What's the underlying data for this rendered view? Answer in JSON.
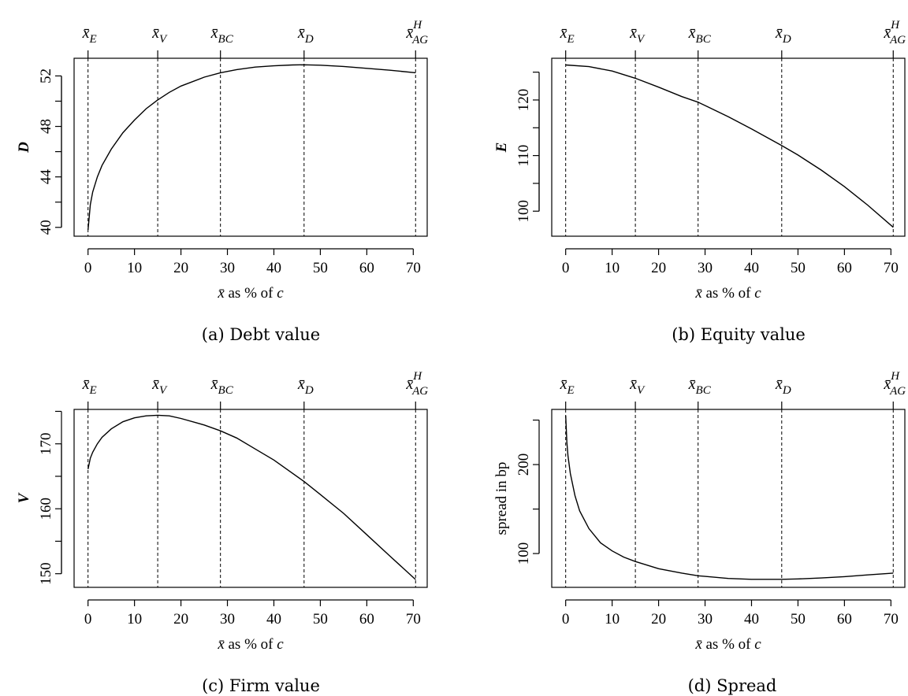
{
  "chart_data": [
    {
      "type": "line",
      "panel": "(a)",
      "caption": "(a) Debt value",
      "xlabel": "x̄ as % of c",
      "ylabel": "D",
      "xlim": [
        -3,
        73
      ],
      "ylim": [
        39.3,
        53.4
      ],
      "xticks": [
        0,
        10,
        20,
        30,
        40,
        50,
        60,
        70
      ],
      "yticks": [
        40,
        44,
        48,
        52
      ],
      "top_axis": [
        {
          "label": "x̄",
          "sub": "E",
          "sup": "",
          "x": 0
        },
        {
          "label": "x̄",
          "sub": "V",
          "sup": "",
          "x": 15
        },
        {
          "label": "x̄",
          "sub": "BC",
          "sup": "",
          "x": 28.5
        },
        {
          "label": "x̄",
          "sub": "D",
          "sup": "",
          "x": 46.5
        },
        {
          "label": "x̄",
          "sub": "AG",
          "sup": "H",
          "x": 70.5
        }
      ],
      "series": [
        {
          "x": [
            0,
            0.5,
            1,
            2,
            3,
            5,
            7.5,
            10,
            12.5,
            15,
            17.5,
            20,
            25,
            28.5,
            32,
            36,
            40,
            44,
            46.5,
            50,
            55,
            60,
            65,
            70.5
          ],
          "y": [
            39.8,
            41.8,
            42.8,
            44.0,
            44.9,
            46.2,
            47.5,
            48.5,
            49.4,
            50.1,
            50.7,
            51.2,
            51.9,
            52.25,
            52.5,
            52.7,
            52.8,
            52.87,
            52.88,
            52.85,
            52.75,
            52.6,
            52.45,
            52.25
          ]
        }
      ]
    },
    {
      "type": "line",
      "panel": "(b)",
      "caption": "(b) Equity value",
      "xlabel": "x̄ as % of c",
      "ylabel": "E",
      "xlim": [
        -3,
        73
      ],
      "ylim": [
        95.5,
        127.5
      ],
      "xticks": [
        0,
        10,
        20,
        30,
        40,
        50,
        60,
        70
      ],
      "yticks": [
        100,
        110,
        120
      ],
      "top_axis": [
        {
          "label": "x̄",
          "sub": "E",
          "sup": "",
          "x": 0
        },
        {
          "label": "x̄",
          "sub": "V",
          "sup": "",
          "x": 15
        },
        {
          "label": "x̄",
          "sub": "BC",
          "sup": "",
          "x": 28.5
        },
        {
          "label": "x̄",
          "sub": "D",
          "sup": "",
          "x": 46.5
        },
        {
          "label": "x̄",
          "sub": "AG",
          "sup": "H",
          "x": 70.5
        }
      ],
      "series": [
        {
          "x": [
            0,
            5,
            10,
            15,
            20,
            25,
            28.5,
            30,
            35,
            40,
            46.5,
            50,
            55,
            60,
            65,
            70.5
          ],
          "y": [
            126.3,
            126.0,
            125.2,
            123.9,
            122.3,
            120.6,
            119.6,
            119.0,
            117.0,
            114.8,
            111.8,
            110.1,
            107.4,
            104.4,
            101.1,
            97.1
          ]
        }
      ]
    },
    {
      "type": "line",
      "panel": "(c)",
      "caption": "(c) Firm value",
      "xlabel": "x̄ as % of c",
      "ylabel": "V",
      "xlim": [
        -3,
        73
      ],
      "ylim": [
        147.9,
        175.3
      ],
      "xticks": [
        0,
        10,
        20,
        30,
        40,
        50,
        60,
        70
      ],
      "yticks": [
        150,
        160,
        170
      ],
      "top_axis": [
        {
          "label": "x̄",
          "sub": "E",
          "sup": "",
          "x": 0
        },
        {
          "label": "x̄",
          "sub": "V",
          "sup": "",
          "x": 15
        },
        {
          "label": "x̄",
          "sub": "BC",
          "sup": "",
          "x": 28.5
        },
        {
          "label": "x̄",
          "sub": "D",
          "sup": "",
          "x": 46.5
        },
        {
          "label": "x̄",
          "sub": "AG",
          "sup": "H",
          "x": 70.5
        }
      ],
      "series": [
        {
          "x": [
            0,
            0.5,
            1,
            2,
            3,
            5,
            7.5,
            10,
            12.5,
            15,
            17.5,
            20,
            25,
            28.5,
            32,
            36,
            40,
            46.5,
            50,
            55,
            60,
            65,
            70.5
          ],
          "y": [
            166.1,
            167.8,
            168.7,
            170.0,
            171.0,
            172.3,
            173.4,
            174.0,
            174.3,
            174.4,
            174.3,
            173.9,
            172.9,
            172.0,
            170.9,
            169.2,
            167.5,
            164.2,
            162.2,
            159.3,
            156.0,
            152.7,
            149.1
          ]
        }
      ]
    },
    {
      "type": "line",
      "panel": "(d)",
      "caption": "(d) Spread",
      "xlabel": "x̄ as % of c",
      "ylabel": "spread in bp",
      "xlim": [
        -3,
        73
      ],
      "ylim": [
        62,
        262
      ],
      "xticks": [
        0,
        10,
        20,
        30,
        40,
        50,
        60,
        70
      ],
      "yticks": [
        100,
        200
      ],
      "top_axis": [
        {
          "label": "x̄",
          "sub": "E",
          "sup": "",
          "x": 0
        },
        {
          "label": "x̄",
          "sub": "V",
          "sup": "",
          "x": 15
        },
        {
          "label": "x̄",
          "sub": "BC",
          "sup": "",
          "x": 28.5
        },
        {
          "label": "x̄",
          "sub": "D",
          "sup": "",
          "x": 46.5
        },
        {
          "label": "x̄",
          "sub": "AG",
          "sup": "H",
          "x": 70.5
        }
      ],
      "series": [
        {
          "x": [
            0,
            0.25,
            0.5,
            1,
            2,
            3,
            5,
            7.5,
            10,
            12.5,
            15,
            20,
            25,
            28.5,
            35,
            40,
            46.5,
            50,
            55,
            60,
            65,
            70.5
          ],
          "y": [
            255,
            225,
            210,
            190,
            165,
            148,
            128,
            112,
            103,
            96,
            91,
            83,
            78,
            75,
            72,
            71,
            71,
            71.5,
            72.5,
            74,
            76,
            78
          ]
        }
      ]
    }
  ]
}
